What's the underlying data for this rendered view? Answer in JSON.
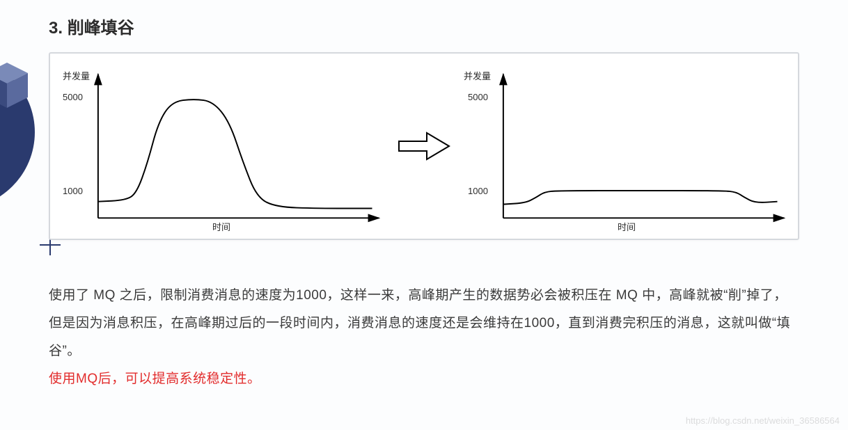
{
  "section": {
    "number": "3.",
    "title": "削峰填谷"
  },
  "diagram": {
    "background_color": "#ffffff",
    "border_color": "#d5d8dd",
    "axis_color": "#000000",
    "curve_color": "#000000",
    "curve_width": 2,
    "arrow_fill": "#ffffff",
    "arrow_stroke": "#000000",
    "left_chart": {
      "type": "line",
      "y_axis_title": "并发量",
      "x_axis_title": "时间",
      "y_ticks": [
        {
          "label": "5000",
          "pos": 0.8
        },
        {
          "label": "1000",
          "pos": 0.18
        }
      ],
      "ylim": [
        0,
        5500
      ],
      "curve": [
        {
          "x": 0.0,
          "y": 0.12
        },
        {
          "x": 0.1,
          "y": 0.13
        },
        {
          "x": 0.14,
          "y": 0.18
        },
        {
          "x": 0.18,
          "y": 0.4
        },
        {
          "x": 0.22,
          "y": 0.7
        },
        {
          "x": 0.27,
          "y": 0.85
        },
        {
          "x": 0.35,
          "y": 0.87
        },
        {
          "x": 0.42,
          "y": 0.85
        },
        {
          "x": 0.48,
          "y": 0.7
        },
        {
          "x": 0.53,
          "y": 0.4
        },
        {
          "x": 0.58,
          "y": 0.15
        },
        {
          "x": 0.65,
          "y": 0.08
        },
        {
          "x": 0.8,
          "y": 0.07
        },
        {
          "x": 1.0,
          "y": 0.07
        }
      ]
    },
    "right_chart": {
      "type": "line",
      "y_axis_title": "并发量",
      "x_axis_title": "时间",
      "y_ticks": [
        {
          "label": "5000",
          "pos": 0.8
        },
        {
          "label": "1000",
          "pos": 0.18
        }
      ],
      "ylim": [
        0,
        5500
      ],
      "curve": [
        {
          "x": 0.0,
          "y": 0.1
        },
        {
          "x": 0.08,
          "y": 0.11
        },
        {
          "x": 0.12,
          "y": 0.15
        },
        {
          "x": 0.15,
          "y": 0.19
        },
        {
          "x": 0.2,
          "y": 0.2
        },
        {
          "x": 0.5,
          "y": 0.2
        },
        {
          "x": 0.8,
          "y": 0.2
        },
        {
          "x": 0.85,
          "y": 0.19
        },
        {
          "x": 0.88,
          "y": 0.15
        },
        {
          "x": 0.92,
          "y": 0.11
        },
        {
          "x": 1.0,
          "y": 0.12
        }
      ]
    }
  },
  "paragraph": {
    "line1": "使用了 MQ 之后，限制消费消息的速度为1000，这样一来，高峰期产生的数据势必会被积压在 MQ 中，高峰就被“削”掉了，但是因为消息积压，在高峰期过后的一段时间内，消费消息的速度还是会维持在1000，直到消费完积压的消息，这就叫做“填谷”。",
    "line2": "使用MQ后，可以提高系统稳定性。"
  },
  "decorations": {
    "circle_color": "#2a3a6e",
    "cross_color": "#2a3a6e",
    "cube_colors": {
      "top": "#7a8ab8",
      "left": "#3a4a7e",
      "right": "#5a6a9e"
    }
  },
  "watermark": "https://blog.csdn.net/weixin_36586564"
}
